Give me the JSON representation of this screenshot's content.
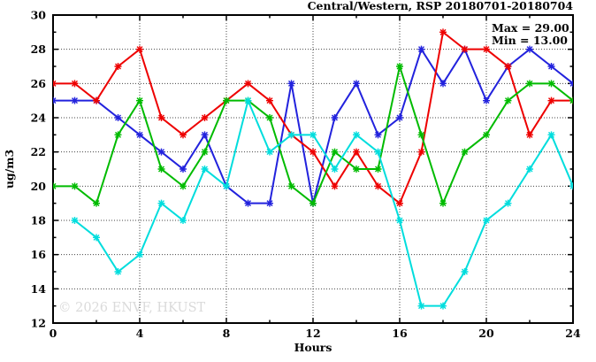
{
  "title": "Central/Western, RSP 20180701-20180704",
  "stats": {
    "max_label": "Max = 29.00",
    "min_label": "Min = 13.00"
  },
  "watermark": "© 2026 ENVF, HKUST",
  "colors": {
    "red": "#ee0000",
    "blue": "#2222dd",
    "green": "#00bb00",
    "cyan": "#00dddd",
    "grid": "#444444",
    "axis": "#000000"
  },
  "chart_data": {
    "type": "line",
    "title": "Central/Western, RSP 20180701-20180704",
    "xlabel": "Hours",
    "ylabel": "ug/m3",
    "xlim": [
      0,
      24
    ],
    "ylim": [
      12,
      30
    ],
    "x_major_ticks": [
      0,
      4,
      8,
      12,
      16,
      20,
      24
    ],
    "x_minor_step": 2,
    "y_major_ticks": [
      12,
      14,
      16,
      18,
      20,
      22,
      24,
      26,
      28,
      30
    ],
    "y_minor_step": 1,
    "grid": true,
    "legend_position": "none",
    "annotations": {
      "max": 29.0,
      "min": 13.0
    },
    "x": [
      0,
      1,
      2,
      3,
      4,
      5,
      6,
      7,
      8,
      9,
      10,
      11,
      12,
      13,
      14,
      15,
      16,
      17,
      18,
      19,
      20,
      21,
      22,
      23,
      24
    ],
    "series": [
      {
        "name": "blue",
        "color": "#2222dd",
        "values": [
          25,
          25,
          25,
          24,
          23,
          22,
          21,
          23,
          20,
          19,
          19,
          26,
          19,
          24,
          26,
          23,
          24,
          28,
          26,
          28,
          25,
          27,
          28,
          27,
          26
        ]
      },
      {
        "name": "red",
        "color": "#ee0000",
        "values": [
          26,
          26,
          25,
          27,
          28,
          24,
          23,
          24,
          25,
          26,
          25,
          23,
          22,
          20,
          22,
          20,
          19,
          22,
          29,
          28,
          28,
          27,
          23,
          25,
          25
        ]
      },
      {
        "name": "green",
        "color": "#00bb00",
        "values": [
          20,
          20,
          19,
          23,
          25,
          21,
          20,
          22,
          25,
          25,
          24,
          20,
          19,
          22,
          21,
          21,
          27,
          23,
          19,
          22,
          23,
          25,
          26,
          26,
          25
        ]
      },
      {
        "name": "cyan",
        "color": "#00dddd",
        "values": [
          null,
          18,
          17,
          15,
          16,
          19,
          18,
          21,
          20,
          25,
          22,
          23,
          23,
          21,
          23,
          22,
          18,
          13,
          13,
          15,
          18,
          19,
          21,
          23,
          20
        ]
      }
    ]
  }
}
